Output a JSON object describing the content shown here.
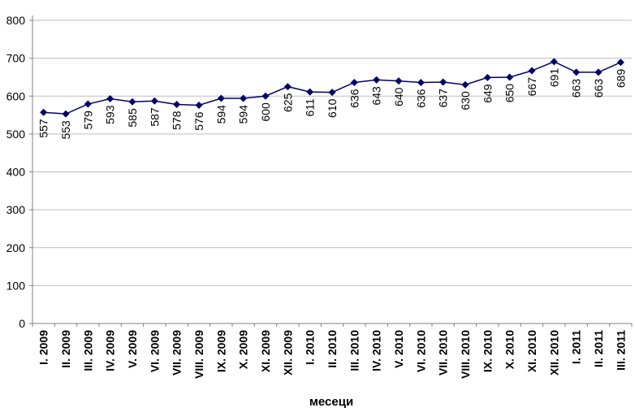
{
  "chart_data": {
    "type": "line",
    "title": "",
    "xlabel": "месеци",
    "ylabel": "",
    "ylim": [
      0,
      800
    ],
    "yticks": [
      0,
      100,
      200,
      300,
      400,
      500,
      600,
      700,
      800
    ],
    "ytick_labels": [
      "0",
      "100",
      "200",
      "300",
      "400",
      "500",
      "600",
      "700",
      "800"
    ],
    "grid": true,
    "legend": "none",
    "categories": [
      "I. 2009",
      "II. 2009",
      "III. 2009",
      "IV. 2009",
      "V. 2009",
      "VI. 2009",
      "VII. 2009",
      "VIII. 2009",
      "IX. 2009",
      "X. 2009",
      "XI. 2009",
      "XII. 2009",
      "I. 2010",
      "II. 2010",
      "III. 2010",
      "IV. 2010",
      "V. 2010",
      "VI. 2010",
      "VII. 2010",
      "VIII. 2010",
      "IX. 2010",
      "X. 2010",
      "XI. 2010",
      "XII. 2010",
      "I. 2011",
      "II. 2011",
      "III. 2011"
    ],
    "series": [
      {
        "values": [
          557,
          553,
          579,
          593,
          585,
          587,
          578,
          576,
          594,
          594,
          600,
          625,
          611,
          610,
          636,
          643,
          640,
          636,
          637,
          630,
          649,
          650,
          667,
          691,
          663,
          663,
          689
        ],
        "color": "#000066"
      }
    ]
  }
}
